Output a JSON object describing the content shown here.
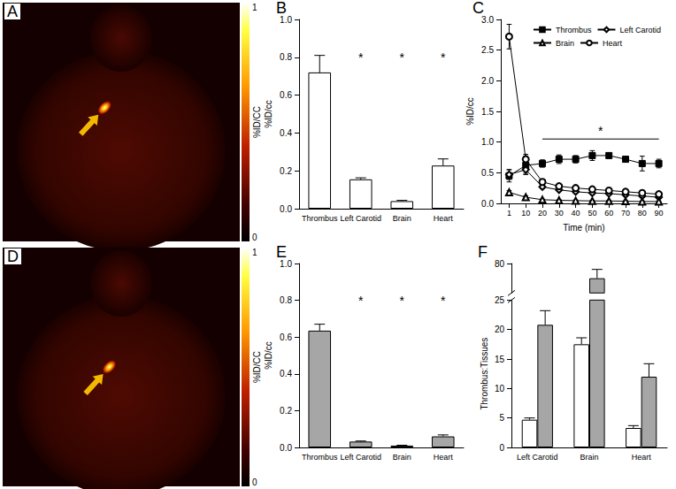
{
  "chart_data": [
    {
      "type": "image",
      "title": "A",
      "colorbar": {
        "label": "%ID/CC",
        "range": [
          0,
          1
        ],
        "ticks": [
          0,
          1
        ]
      }
    },
    {
      "type": "bar",
      "title": "B",
      "ylabel": "%ID/cc",
      "categories": [
        "Thrombus",
        "Left Carotid",
        "Brain",
        "Heart"
      ],
      "values": [
        0.72,
        0.155,
        0.04,
        0.228
      ],
      "errors": [
        0.09,
        0.008,
        0.004,
        0.035
      ],
      "color": "#ffffff",
      "ylim": [
        0,
        1
      ],
      "yticks": [
        {
          "value": 0,
          "label": "0.0"
        },
        0.2,
        0.4,
        0.6,
        0.8,
        {
          "value": 1,
          "label": "1.0"
        }
      ],
      "grid": false,
      "annotations": [
        {
          "category": "Left Carotid",
          "text": "*",
          "y": 0.8
        },
        {
          "category": "Brain",
          "text": "*",
          "y": 0.8
        },
        {
          "category": "Heart",
          "text": "*",
          "y": 0.8
        }
      ]
    },
    {
      "type": "line",
      "title": "C",
      "xlabel": "Time (min)",
      "ylabel": "%ID/cc",
      "categories": [
        "1",
        "10",
        "20",
        "30",
        "40",
        "50",
        "60",
        "70",
        "80",
        "90"
      ],
      "series": [
        {
          "name": "Thrombus",
          "color": "#000000",
          "marker": "filled-square",
          "values": [
            0.45,
            0.62,
            0.65,
            0.72,
            0.72,
            0.78,
            0.78,
            0.72,
            0.65,
            0.65
          ],
          "errors": [
            0.1,
            0.15,
            0.06,
            0.07,
            0.06,
            0.08,
            0.03,
            0.04,
            0.12,
            0.07
          ]
        },
        {
          "name": "Left Carotid",
          "color": "#000000",
          "marker": "open-diamond",
          "values": [
            0.47,
            0.55,
            0.27,
            0.22,
            0.19,
            0.17,
            0.16,
            0.14,
            0.12,
            0.1
          ],
          "errors": [
            0.08,
            0.06,
            0.03,
            0.02,
            0.02,
            0.02,
            0.02,
            0.02,
            0.02,
            0.02
          ]
        },
        {
          "name": "Brain",
          "color": "#000000",
          "marker": "open-triangle",
          "values": [
            0.18,
            0.1,
            0.06,
            0.05,
            0.045,
            0.04,
            0.04,
            0.035,
            0.03,
            0.03
          ],
          "errors": [
            0.03,
            0.02,
            0.01,
            0.01,
            0.01,
            0.01,
            0.01,
            0.01,
            0.01,
            0.01
          ]
        },
        {
          "name": "Heart",
          "color": "#000000",
          "marker": "open-circle",
          "values": [
            2.72,
            0.72,
            0.35,
            0.28,
            0.25,
            0.23,
            0.21,
            0.19,
            0.17,
            0.15
          ],
          "errors": [
            0.2,
            0.08,
            0.04,
            0.03,
            0.03,
            0.02,
            0.02,
            0.02,
            0.02,
            0.02
          ]
        }
      ],
      "ylim": [
        0,
        3
      ],
      "yticks": [
        {
          "value": 0,
          "label": "0.0"
        },
        0.5,
        {
          "value": 1,
          "label": "1.0"
        },
        1.5,
        {
          "value": 2,
          "label": "2.0"
        },
        2.5,
        {
          "value": 3,
          "label": "3.0"
        }
      ],
      "grid": false,
      "legend": "upper right",
      "annotations": [
        {
          "text": "*",
          "from": "20",
          "to": "90",
          "y": 1.05
        }
      ]
    },
    {
      "type": "image",
      "title": "D",
      "colorbar": {
        "label": "%ID/CC",
        "range": [
          0,
          1
        ],
        "ticks": [
          0,
          1
        ]
      }
    },
    {
      "type": "bar",
      "title": "E",
      "ylabel": "%ID/cc",
      "categories": [
        "Thrombus",
        "Left Carotid",
        "Brain",
        "Heart"
      ],
      "values": [
        0.635,
        0.032,
        0.01,
        0.06
      ],
      "errors": [
        0.035,
        0.003,
        0.002,
        0.008
      ],
      "color": "#a6a6a6",
      "ylim": [
        0,
        1
      ],
      "yticks": [
        {
          "value": 0,
          "label": "0.0"
        },
        0.2,
        0.4,
        0.6,
        0.8,
        {
          "value": 1,
          "label": "1.0"
        }
      ],
      "grid": false,
      "annotations": [
        {
          "category": "Left Carotid",
          "text": "*",
          "y": 0.8
        },
        {
          "category": "Brain",
          "text": "*",
          "y": 0.8
        },
        {
          "category": "Heart",
          "text": "*",
          "y": 0.8
        }
      ]
    },
    {
      "type": "bar",
      "title": "F",
      "ylabel": "Thrombus:Tissues",
      "categories": [
        "Left Carotid",
        "Brain",
        "Heart"
      ],
      "series": [
        {
          "color": "#ffffff",
          "values": [
            4.7,
            17.5,
            3.3
          ],
          "errors": [
            0.3,
            1.1,
            0.4
          ]
        },
        {
          "color": "#a6a6a6",
          "values": [
            20.8,
            77.5,
            12
          ],
          "errors": [
            2.4,
            1.5,
            2.2
          ]
        }
      ],
      "ylim": [
        0,
        80
      ],
      "axis_break": [
        25,
        75
      ],
      "yticks": [
        0,
        5,
        10,
        15,
        20,
        25,
        80
      ],
      "grid": false
    }
  ]
}
